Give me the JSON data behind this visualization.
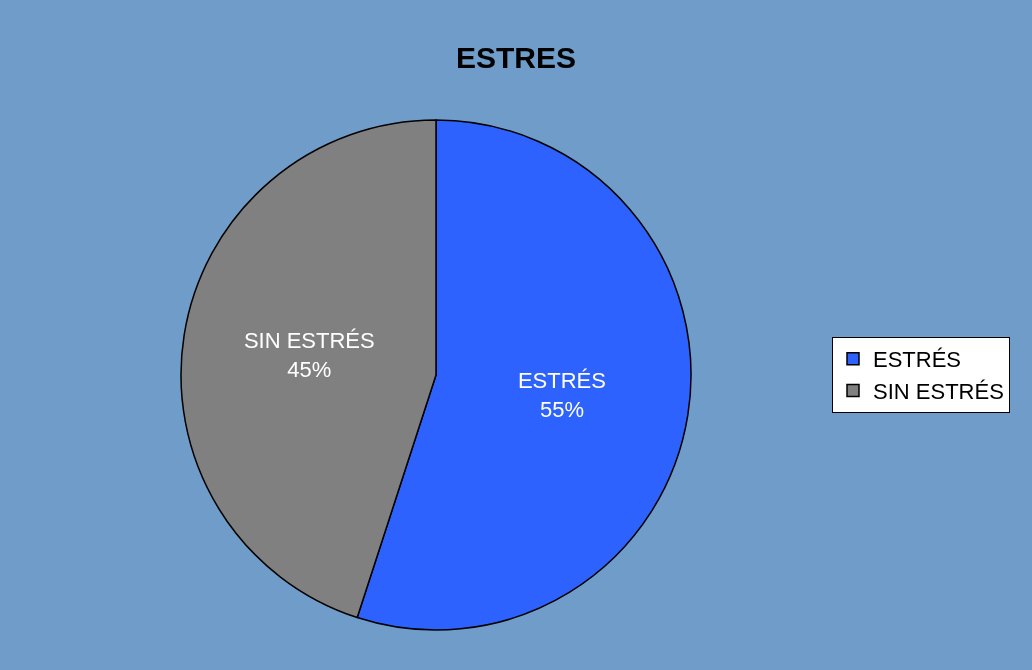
{
  "chart_data": {
    "type": "pie",
    "title": "ESTRES",
    "categories": [
      "ESTRÉS",
      "SIN ESTRÉS"
    ],
    "values": [
      55,
      45
    ],
    "colors": [
      "#2e62ff",
      "#808080"
    ],
    "value_labels": [
      "55%",
      "45%"
    ],
    "legend": "right"
  }
}
